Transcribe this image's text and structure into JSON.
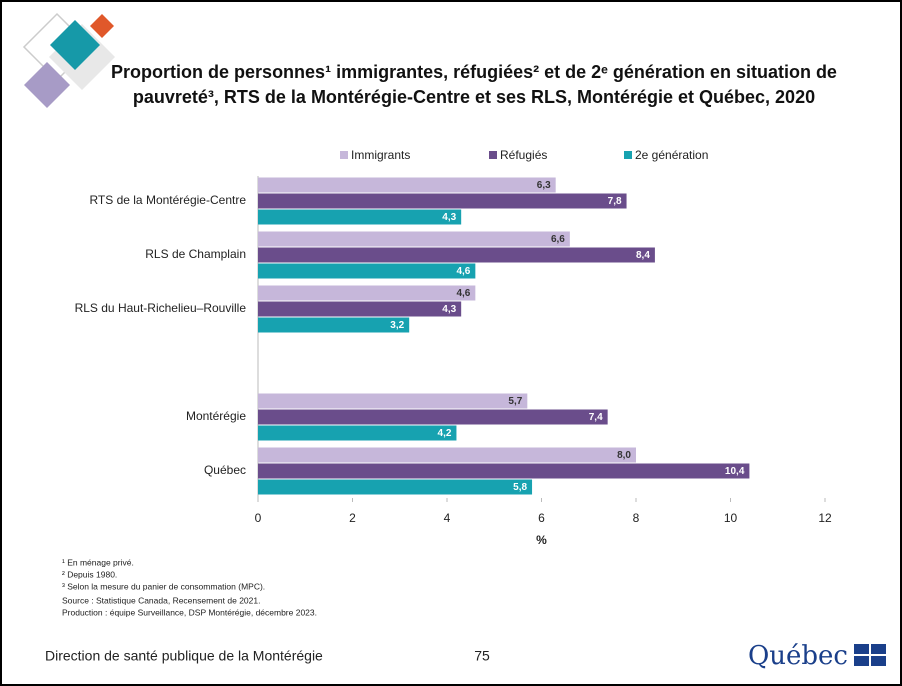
{
  "chart_data": {
    "type": "hbar",
    "title": "Proportion de personnes¹ immigrantes, réfugiées² et de 2ᵉ génération en situation de pauvreté³, RTS de la Montérégie-Centre et ses RLS, Montérégie et Québec, 2020",
    "x_label": "%",
    "categories": [
      "RTS de la Montérégie-Centre",
      "RLS de Champlain",
      "RLS du Haut-Richelieu–Rouville",
      null,
      "Montérégie",
      "Québec"
    ],
    "series": [
      {
        "name": "Immigrants",
        "color": "#c6b7da",
        "values": [
          6.3,
          6.6,
          4.6,
          null,
          5.7,
          8.0
        ],
        "value_labels": [
          "6,3",
          "6,6",
          "4,6",
          null,
          "5,7",
          "8,0"
        ]
      },
      {
        "name": "Réfugiés",
        "color": "#6a4d8b",
        "values": [
          7.8,
          8.4,
          4.3,
          null,
          7.4,
          10.4
        ],
        "value_labels": [
          "7,8",
          "8,4",
          "4,3",
          null,
          "7,4",
          "10,4"
        ]
      },
      {
        "name": "2e génération",
        "color": "#17a2b0",
        "values": [
          4.3,
          4.6,
          3.2,
          null,
          4.2,
          5.8
        ],
        "value_labels": [
          "4,3",
          "4,6",
          "3,2",
          null,
          "4,2",
          "5,8"
        ]
      }
    ],
    "xlim": [
      0,
      12
    ],
    "xticks": [
      0,
      2,
      4,
      6,
      8,
      10,
      12
    ]
  },
  "footnotes": [
    "¹ En ménage privé.",
    "² Depuis 1980.",
    "³ Selon la mesure du panier de consommation (MPC).",
    "Source : Statistique Canada, Recensement de 2021.",
    "Production : équipe Surveillance, DSP Montérégie, décembre 2023."
  ],
  "footer": {
    "organization": "Direction de santé publique de la Montérégie",
    "page": 75,
    "logo": "Québec"
  }
}
